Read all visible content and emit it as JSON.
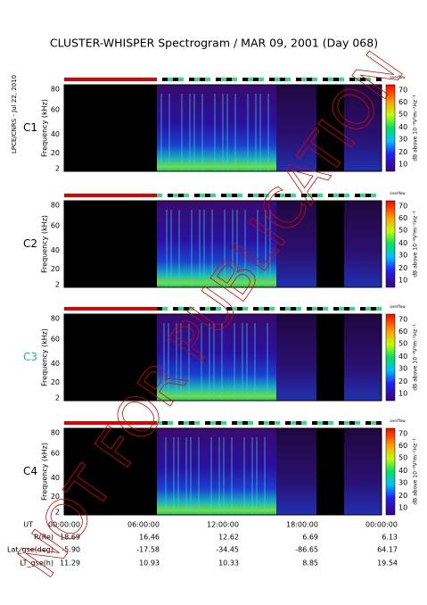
{
  "title": "CLUSTER-WHISPER Spectrogram / MAR 09, 2001 (Day 068)",
  "side_label": "LPCE/CNRS - Jul 22, 2010",
  "panels": [
    {
      "label": "C1"
    },
    {
      "label": "C2"
    },
    {
      "label": "C3"
    },
    {
      "label": "C4"
    }
  ],
  "y_axis_label": "Frequency (kHz)",
  "y_ticks": [
    "80",
    "60",
    "40",
    "20",
    "2"
  ],
  "colorbar_label": "dB above 10⁻⁸V²m⁻²Hz⁻¹",
  "colorbar_ticks": [
    "70",
    "60",
    "50",
    "40",
    "30",
    "20",
    "10"
  ],
  "status_label": "overflow",
  "x_ticks": [
    "00:00:00",
    "06:00:00",
    "12:00:00",
    "18:00:00",
    "00:00:00"
  ],
  "ephemeris": {
    "rows": [
      {
        "label": "UT"
      },
      {
        "label": "R(Re)",
        "values": [
          "18.69",
          "16.46",
          "12.62",
          "6.69",
          "6.13"
        ]
      },
      {
        "label": "Lat_gse(deg)",
        "values": [
          "-5.90",
          "-17.58",
          "-34.45",
          "-86.65",
          "64.17"
        ]
      },
      {
        "label": "LT_gse(h)",
        "values": [
          "11.29",
          "10.93",
          "10.33",
          "8.85",
          "19.54"
        ]
      }
    ]
  },
  "watermark": "NOT FOR PUBLICATION"
}
